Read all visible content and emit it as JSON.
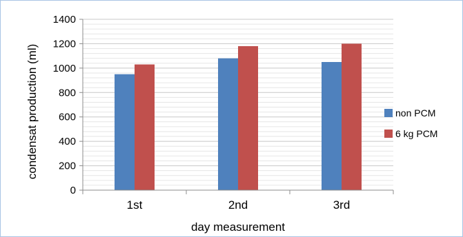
{
  "chart_data": {
    "type": "bar",
    "title": "",
    "xlabel": "day measurement",
    "ylabel": "condensat production  (ml)",
    "categories": [
      "1st",
      "2nd",
      "3rd"
    ],
    "series": [
      {
        "name": "non PCM",
        "values": [
          950,
          1080,
          1050
        ],
        "color": "#4f81bd"
      },
      {
        "name": "6 kg PCM",
        "values": [
          1030,
          1180,
          1200
        ],
        "color": "#c0504d"
      }
    ],
    "ylim": [
      0,
      1400
    ],
    "y_ticks": [
      "0",
      "200",
      "400",
      "600",
      "800",
      "1000",
      "1200",
      "1400"
    ],
    "y_tick_values": [
      0,
      200,
      400,
      600,
      800,
      1000,
      1200,
      1400
    ],
    "grid": true,
    "minor_grid_step": 40,
    "legend_position": "right"
  }
}
